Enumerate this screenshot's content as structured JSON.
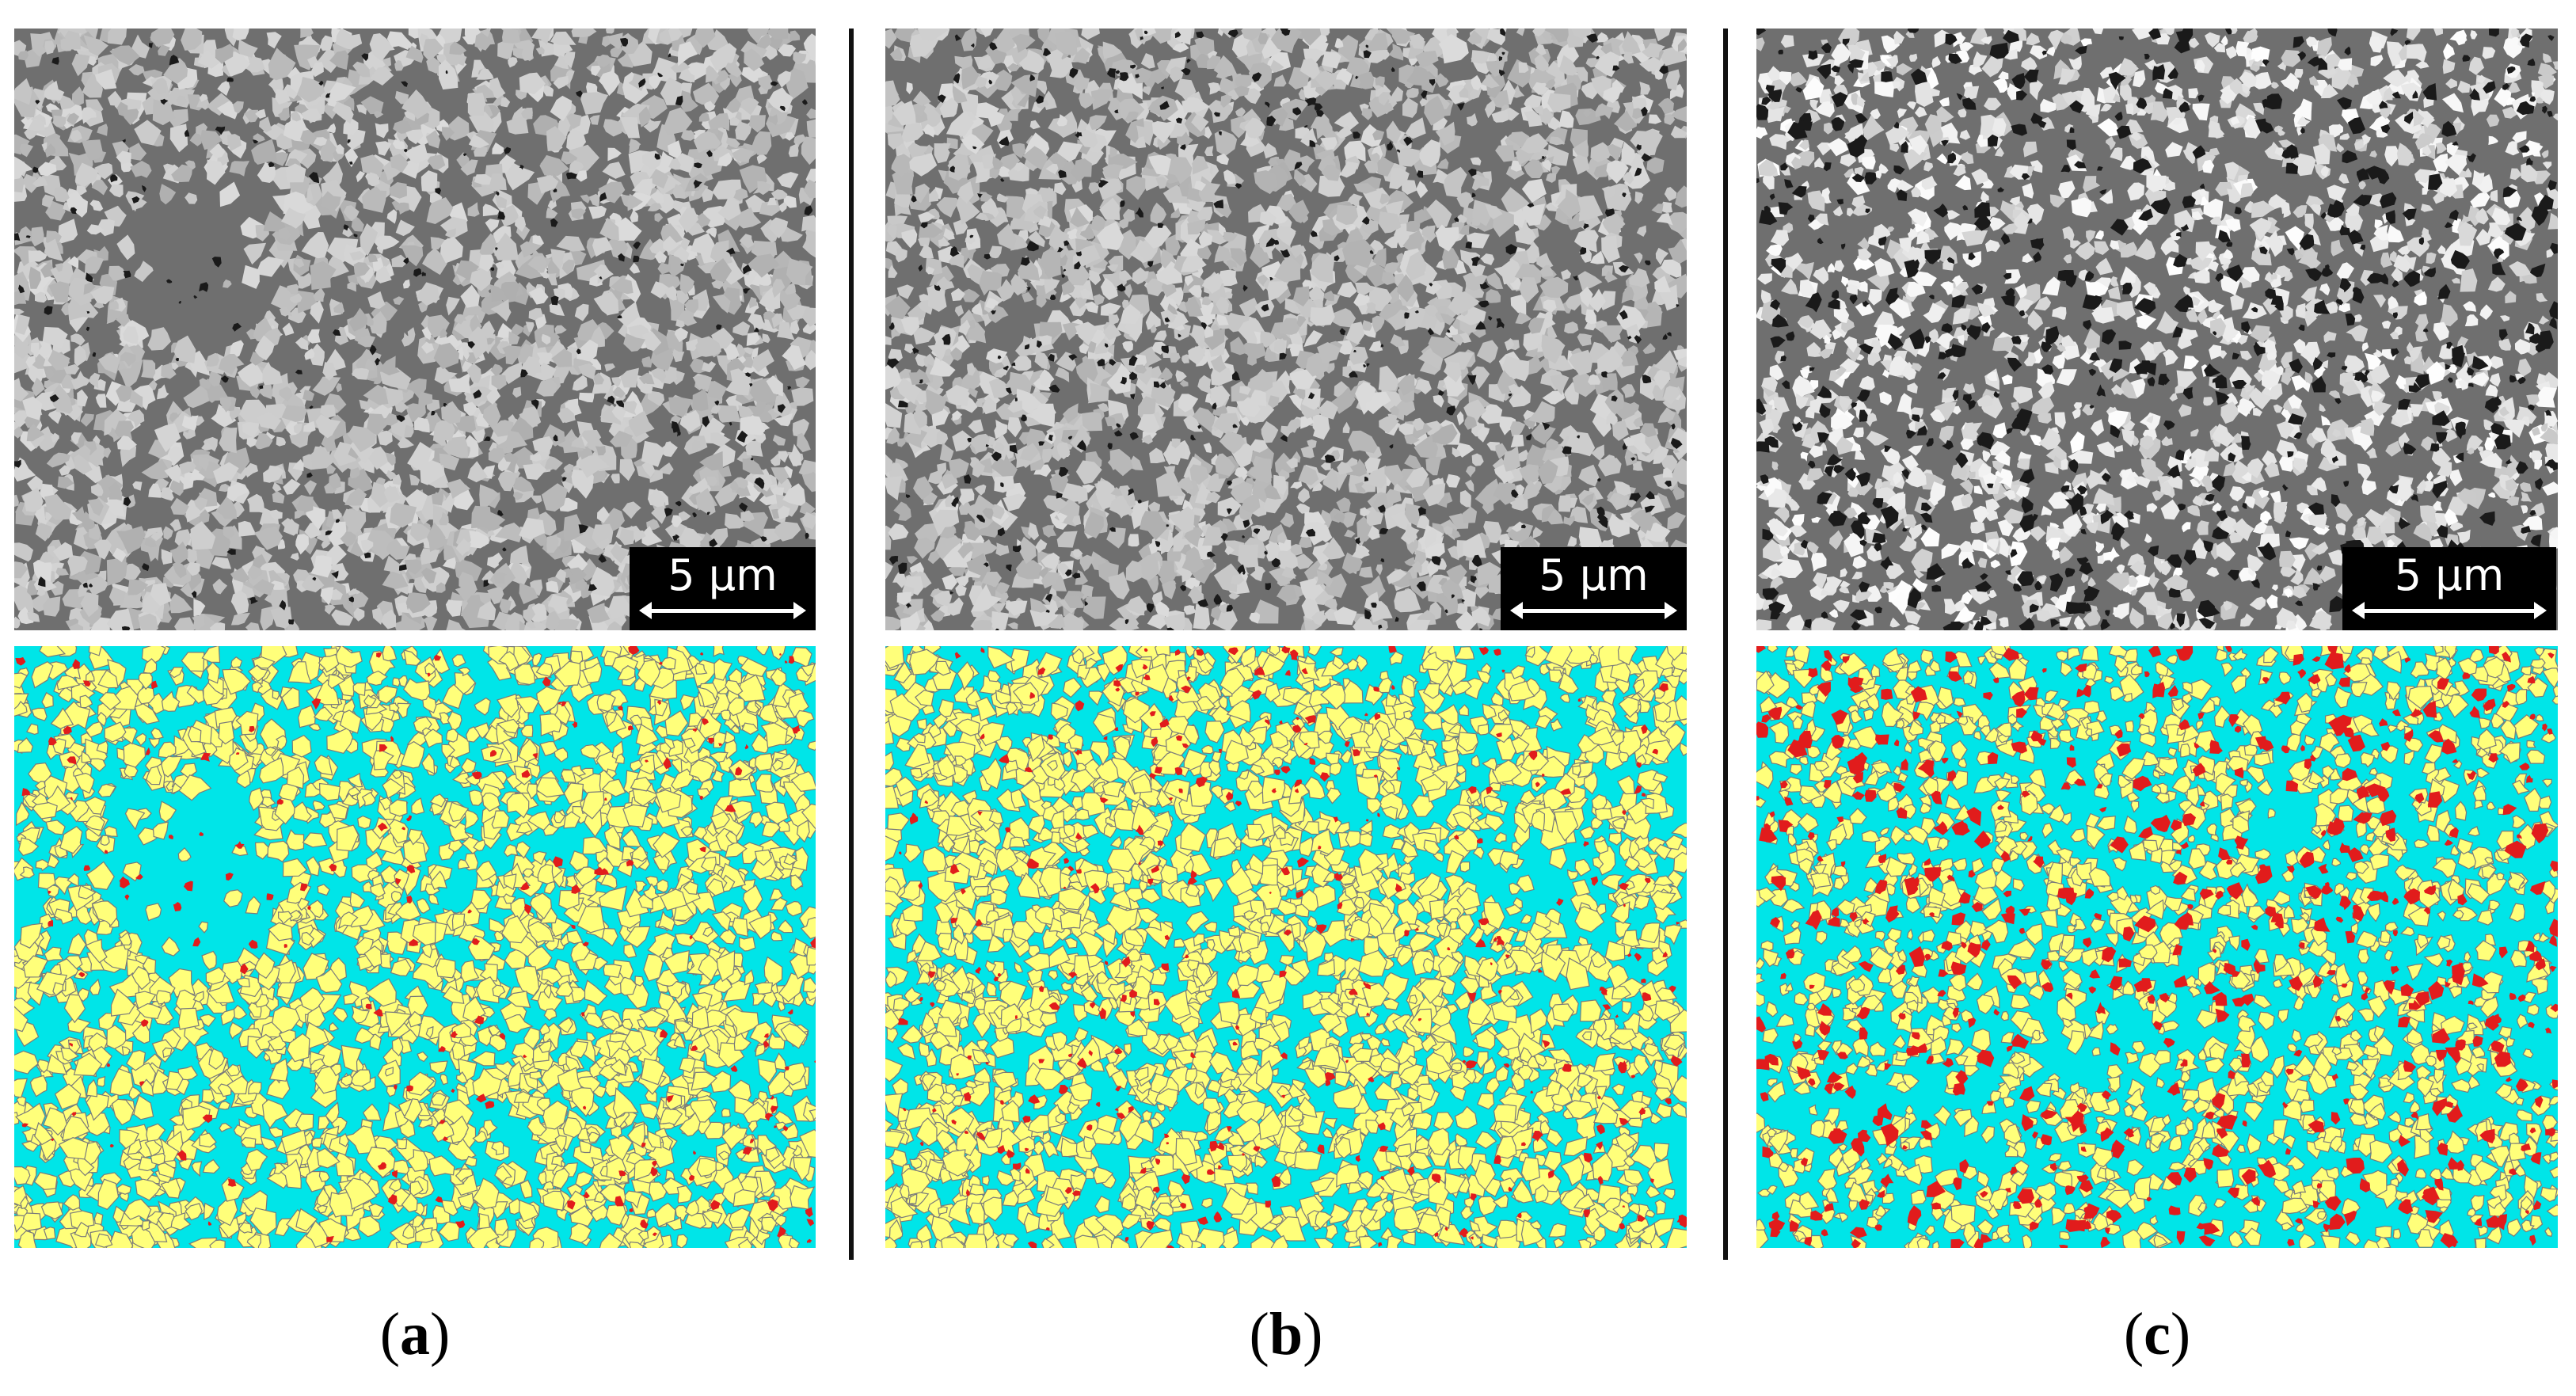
{
  "panels": [
    {
      "caption_letter": "a",
      "scale_label": "5 µm"
    },
    {
      "caption_letter": "b",
      "scale_label": "5 µm"
    },
    {
      "caption_letter": "c",
      "scale_label": "5 µm"
    }
  ],
  "colors": {
    "sem_matrix": "#6f6f6f",
    "sem_grain": "#c4c4c4",
    "sem_pore": "#1a1a1a",
    "phase_matrix": "#00e5e8",
    "phase_grain": "#ffff7a",
    "phase_pore": "#e11c1c",
    "phase_outline": "#7a7a7a"
  }
}
